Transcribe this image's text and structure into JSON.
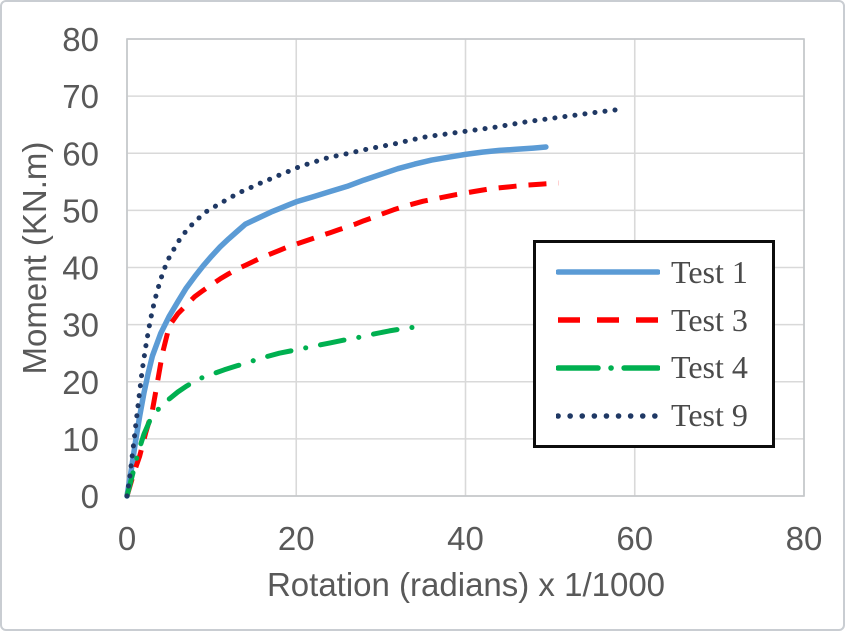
{
  "figure": {
    "background": "#ffffff",
    "outer_border_color": "#c9cdd2"
  },
  "chart_data": {
    "type": "line",
    "title": "",
    "xlabel": "Rotation (radians) x 1/1000",
    "ylabel": "Moment (KN.m)",
    "xlim": [
      0,
      80
    ],
    "ylim": [
      0,
      80
    ],
    "x_ticks": [
      0,
      20,
      40,
      60,
      80
    ],
    "y_ticks": [
      0,
      10,
      20,
      30,
      40,
      50,
      60,
      70,
      80
    ],
    "grid": true,
    "gridline_color": "#d9d9d9",
    "plot_border_color": "#c4c7ca",
    "axis_text_color": "#595959",
    "legend": {
      "position": "middle-right",
      "border_color": "#0d0d0d",
      "background": "#ffffff",
      "text_color": "#4a4a4a"
    },
    "series": [
      {
        "name": "Test 1",
        "color": "#5B9BD5",
        "dash": "solid",
        "points": [
          [
            0,
            0
          ],
          [
            0.5,
            4.5
          ],
          [
            1,
            9.5
          ],
          [
            1.5,
            14
          ],
          [
            2,
            18
          ],
          [
            2.5,
            21.5
          ],
          [
            3,
            24.5
          ],
          [
            4,
            28.5
          ],
          [
            5,
            31.5
          ],
          [
            6,
            34
          ],
          [
            7,
            36.4
          ],
          [
            8,
            38.4
          ],
          [
            9,
            40.3
          ],
          [
            10,
            42
          ],
          [
            11,
            43.6
          ],
          [
            12,
            45
          ],
          [
            13,
            46.3
          ],
          [
            14,
            47.6
          ],
          [
            15,
            48.3
          ],
          [
            16,
            49
          ],
          [
            17,
            49.7
          ],
          [
            18,
            50.3
          ],
          [
            19,
            50.9
          ],
          [
            20,
            51.5
          ],
          [
            22,
            52.4
          ],
          [
            24,
            53.3
          ],
          [
            26,
            54.2
          ],
          [
            28,
            55.3
          ],
          [
            30,
            56.3
          ],
          [
            32,
            57.3
          ],
          [
            34,
            58.1
          ],
          [
            36,
            58.8
          ],
          [
            38,
            59.3
          ],
          [
            40,
            59.8
          ],
          [
            42,
            60.2
          ],
          [
            44,
            60.5
          ],
          [
            46,
            60.7
          ],
          [
            48,
            60.9
          ],
          [
            49.5,
            61.1
          ]
        ]
      },
      {
        "name": "Test 3",
        "color": "#FF0000",
        "dash": "dashed",
        "points": [
          [
            0,
            0
          ],
          [
            0.8,
            4
          ],
          [
            1.5,
            7
          ],
          [
            2.2,
            11
          ],
          [
            3,
            15
          ],
          [
            3.6,
            20
          ],
          [
            4.2,
            25
          ],
          [
            5,
            29.8
          ],
          [
            6,
            31.9
          ],
          [
            7,
            33.4
          ],
          [
            8,
            34.9
          ],
          [
            9,
            36
          ],
          [
            10,
            37
          ],
          [
            11,
            38
          ],
          [
            12,
            38.9
          ],
          [
            13,
            39.7
          ],
          [
            14,
            40.4
          ],
          [
            15,
            41.1
          ],
          [
            16,
            41.8
          ],
          [
            17,
            42.4
          ],
          [
            18,
            43
          ],
          [
            19,
            43.6
          ],
          [
            20,
            44.1
          ],
          [
            21,
            44.6
          ],
          [
            22,
            45.1
          ],
          [
            23,
            45.6
          ],
          [
            24,
            46.1
          ],
          [
            25,
            46.6
          ],
          [
            26,
            47.1
          ],
          [
            27,
            47.6
          ],
          [
            28,
            48.2
          ],
          [
            29,
            48.7
          ],
          [
            30,
            49.3
          ],
          [
            31.5,
            50.1
          ],
          [
            33,
            50.8
          ],
          [
            35,
            51.6
          ],
          [
            37,
            52.2
          ],
          [
            39,
            52.8
          ],
          [
            41,
            53.3
          ],
          [
            43,
            53.8
          ],
          [
            45,
            54.1
          ],
          [
            47,
            54.4
          ],
          [
            49,
            54.6
          ],
          [
            51,
            54.8
          ]
        ]
      },
      {
        "name": "Test 4",
        "color": "#00B050",
        "dash": "dash-dot",
        "points": [
          [
            0,
            0
          ],
          [
            0.7,
            4
          ],
          [
            1.4,
            8
          ],
          [
            2,
            10.8
          ],
          [
            2.7,
            13.2
          ],
          [
            3.3,
            14.6
          ],
          [
            4,
            15.6
          ],
          [
            5,
            17
          ],
          [
            6,
            18.2
          ],
          [
            7,
            19.2
          ],
          [
            8.5,
            20.5
          ],
          [
            10,
            21.3
          ],
          [
            11.5,
            22.1
          ],
          [
            13,
            22.8
          ],
          [
            14.5,
            23.5
          ],
          [
            16,
            24.2
          ],
          [
            18,
            25
          ],
          [
            20,
            25.6
          ],
          [
            22,
            26.2
          ],
          [
            24,
            26.8
          ],
          [
            26,
            27.4
          ],
          [
            27.5,
            27.8
          ],
          [
            29,
            28.3
          ],
          [
            31,
            28.9
          ],
          [
            33,
            29.4
          ],
          [
            35,
            29.7
          ]
        ]
      },
      {
        "name": "Test 9",
        "color": "#1F3864",
        "dash": "dotted",
        "points": [
          [
            0,
            0
          ],
          [
            0.3,
            3
          ],
          [
            0.7,
            8
          ],
          [
            1,
            12
          ],
          [
            1.4,
            17
          ],
          [
            1.8,
            22
          ],
          [
            2.2,
            26
          ],
          [
            2.6,
            29.5
          ],
          [
            3,
            32.5
          ],
          [
            3.5,
            35.5
          ],
          [
            4,
            38
          ],
          [
            4.5,
            40.1
          ],
          [
            5,
            41.8
          ],
          [
            5.7,
            43.6
          ],
          [
            6.3,
            45.1
          ],
          [
            7,
            46.4
          ],
          [
            7.8,
            47.7
          ],
          [
            8.6,
            48.8
          ],
          [
            9.4,
            49.8
          ],
          [
            10.2,
            50.5
          ],
          [
            11.2,
            51.4
          ],
          [
            12.2,
            52.2
          ],
          [
            13.1,
            53
          ],
          [
            14.2,
            53.7
          ],
          [
            15.2,
            54.4
          ],
          [
            16.3,
            55.1
          ],
          [
            17.3,
            55.7
          ],
          [
            18.5,
            56.5
          ],
          [
            19.4,
            57
          ],
          [
            20.6,
            57.8
          ],
          [
            21.8,
            58.3
          ],
          [
            23,
            58.9
          ],
          [
            24.2,
            59.4
          ],
          [
            25.3,
            59.7
          ],
          [
            26.5,
            60.1
          ],
          [
            28.3,
            60.7
          ],
          [
            30,
            61.2
          ],
          [
            31.5,
            61.6
          ],
          [
            33.5,
            62.3
          ],
          [
            35.4,
            62.9
          ],
          [
            37.4,
            63.3
          ],
          [
            39.3,
            63.7
          ],
          [
            41.3,
            64.1
          ],
          [
            43.3,
            64.5
          ],
          [
            45.2,
            65
          ],
          [
            47.2,
            65.5
          ],
          [
            49.2,
            65.9
          ],
          [
            51.1,
            66.3
          ],
          [
            53.1,
            66.7
          ],
          [
            55.1,
            67.1
          ],
          [
            56.7,
            67.4
          ],
          [
            58.3,
            67.7
          ]
        ]
      }
    ]
  }
}
